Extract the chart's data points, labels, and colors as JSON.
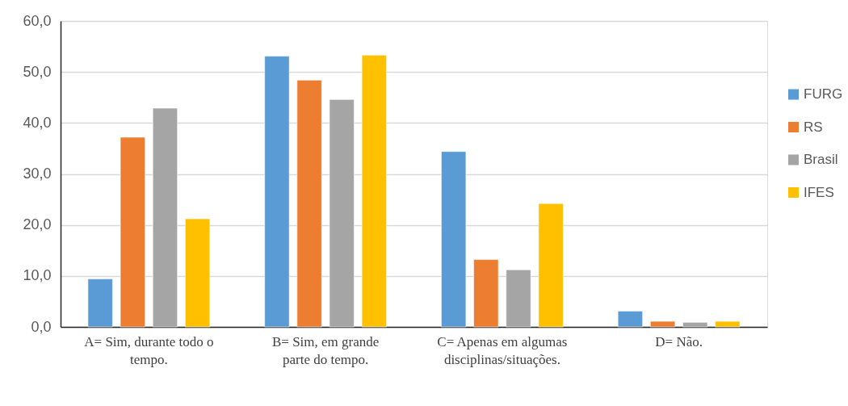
{
  "chart_data": {
    "type": "bar",
    "categories": [
      "A= Sim, durante todo o tempo.",
      "B= Sim, em grande parte do tempo.",
      "C= Apenas em algumas disciplinas/situações.",
      "D= Não."
    ],
    "series": [
      {
        "name": "FURG",
        "color": "#5b9bd5",
        "values": [
          9.4,
          53.1,
          34.4,
          3.1
        ]
      },
      {
        "name": "RS",
        "color": "#ed7d31",
        "values": [
          37.2,
          48.4,
          13.2,
          1.1
        ]
      },
      {
        "name": "Brasil",
        "color": "#a5a5a5",
        "values": [
          42.9,
          44.6,
          11.2,
          0.9
        ]
      },
      {
        "name": "IFES",
        "color": "#ffc000",
        "values": [
          21.2,
          53.3,
          24.2,
          1.1
        ]
      }
    ],
    "ylim": [
      0,
      60
    ],
    "yticks": [
      {
        "value": 0,
        "label": "0,0"
      },
      {
        "value": 10,
        "label": "10,0"
      },
      {
        "value": 20,
        "label": "20,0"
      },
      {
        "value": 30,
        "label": "30,0"
      },
      {
        "value": 40,
        "label": "40,0"
      },
      {
        "value": 50,
        "label": "50,0"
      },
      {
        "value": 60,
        "label": "60,0"
      }
    ],
    "grid": "y",
    "legend": "right"
  }
}
